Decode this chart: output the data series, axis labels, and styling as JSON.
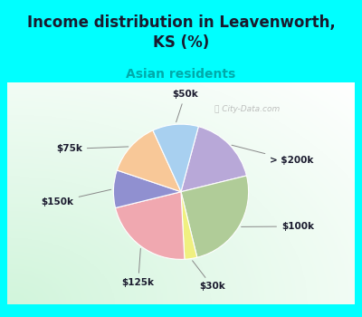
{
  "title": "Income distribution in Leavenworth,\nKS (%)",
  "subtitle": "Asian residents",
  "title_color": "#1a1a2e",
  "subtitle_color": "#00aaaa",
  "background_outer": "#00ffff",
  "slices": [
    {
      "label": "> $200k",
      "value": 17,
      "color": "#b8a8d8"
    },
    {
      "label": "$100k",
      "value": 25,
      "color": "#b0cc98"
    },
    {
      "label": "$30k",
      "value": 3,
      "color": "#f0f080"
    },
    {
      "label": "$125k",
      "value": 22,
      "color": "#f0a8b0"
    },
    {
      "label": "$150k",
      "value": 9,
      "color": "#9090d0"
    },
    {
      "label": "$75k",
      "value": 13,
      "color": "#f8c898"
    },
    {
      "label": "$50k",
      "value": 11,
      "color": "#a8d0f0"
    }
  ],
  "watermark": "City-Data.com",
  "figsize": [
    4.0,
    3.5
  ],
  "dpi": 100
}
